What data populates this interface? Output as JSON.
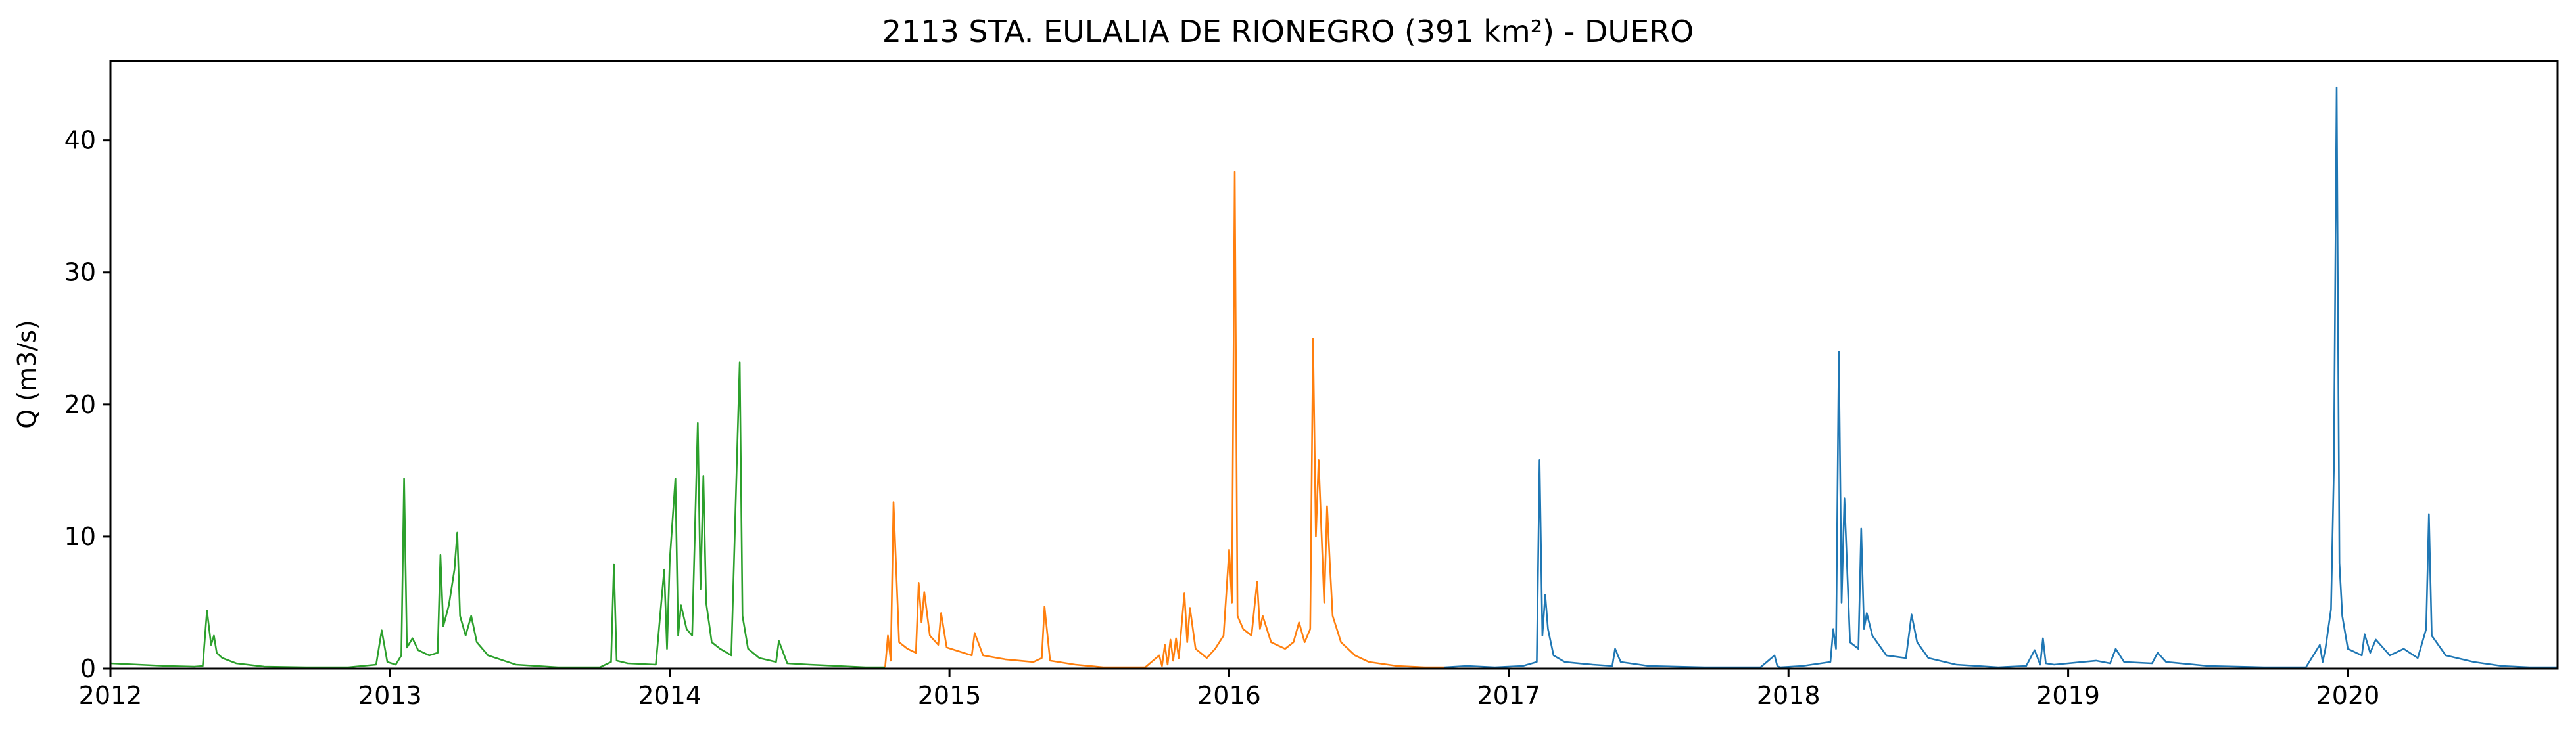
{
  "chart_data": {
    "type": "line",
    "title": "2113 STA. EULALIA DE RIONEGRO (391 km²) - DUERO",
    "xlabel": "",
    "ylabel": "Q (m3/s)",
    "xlim": [
      2012.0,
      2020.75
    ],
    "ylim": [
      0,
      46
    ],
    "x_ticks": [
      2012,
      2013,
      2014,
      2015,
      2016,
      2017,
      2018,
      2019,
      2020
    ],
    "y_ticks": [
      0,
      10,
      20,
      30,
      40
    ],
    "grid": false,
    "legend": "none",
    "series": [
      {
        "color": "#2ca02c",
        "x": [
          2012.0,
          2012.1,
          2012.2,
          2012.3,
          2012.33,
          2012.345,
          2012.36,
          2012.37,
          2012.38,
          2012.4,
          2012.45,
          2012.55,
          2012.7,
          2012.85,
          2012.95,
          2012.97,
          2012.99,
          2013.02,
          2013.04,
          2013.05,
          2013.06,
          2013.08,
          2013.1,
          2013.14,
          2013.17,
          2013.18,
          2013.19,
          2013.21,
          2013.23,
          2013.24,
          2013.25,
          2013.27,
          2013.29,
          2013.31,
          2013.35,
          2013.45,
          2013.6,
          2013.75,
          2013.79,
          2013.8,
          2013.81,
          2013.85,
          2013.95,
          2013.98,
          2013.99,
          2014.0,
          2014.02,
          2014.03,
          2014.04,
          2014.06,
          2014.08,
          2014.1,
          2014.11,
          2014.12,
          2014.13,
          2014.14,
          2014.15,
          2014.18,
          2014.22,
          2014.25,
          2014.26,
          2014.28,
          2014.32,
          2014.38,
          2014.39,
          2014.42,
          2014.5,
          2014.6,
          2014.7,
          2014.77
        ],
        "y": [
          0.4,
          0.3,
          0.2,
          0.15,
          0.2,
          4.4,
          1.8,
          2.5,
          1.2,
          0.8,
          0.4,
          0.15,
          0.1,
          0.1,
          0.3,
          2.9,
          0.5,
          0.3,
          1.0,
          14.4,
          1.6,
          2.3,
          1.4,
          1.0,
          1.2,
          8.6,
          3.2,
          4.8,
          7.5,
          10.3,
          4.0,
          2.5,
          4.0,
          2.0,
          1.0,
          0.3,
          0.1,
          0.1,
          0.5,
          7.9,
          0.6,
          0.4,
          0.3,
          7.5,
          1.5,
          8.2,
          14.4,
          2.5,
          4.8,
          3.0,
          2.5,
          18.6,
          6.0,
          14.6,
          5.0,
          3.5,
          2.0,
          1.5,
          1.0,
          23.2,
          4.0,
          1.5,
          0.8,
          0.5,
          2.1,
          0.4,
          0.3,
          0.2,
          0.1,
          0.1
        ]
      },
      {
        "color": "#ff7f0e",
        "x": [
          2014.77,
          2014.78,
          2014.79,
          2014.8,
          2014.82,
          2014.85,
          2014.88,
          2014.89,
          2014.9,
          2014.91,
          2014.93,
          2014.96,
          2014.97,
          2014.99,
          2015.05,
          2015.08,
          2015.09,
          2015.12,
          2015.2,
          2015.3,
          2015.33,
          2015.34,
          2015.36,
          2015.45,
          2015.55,
          2015.7,
          2015.75,
          2015.76,
          2015.77,
          2015.78,
          2015.79,
          2015.8,
          2015.81,
          2015.82,
          2015.84,
          2015.85,
          2015.86,
          2015.88,
          2015.92,
          2015.95,
          2015.98,
          2016.0,
          2016.01,
          2016.02,
          2016.03,
          2016.05,
          2016.08,
          2016.1,
          2016.11,
          2016.12,
          2016.15,
          2016.2,
          2016.23,
          2016.25,
          2016.27,
          2016.29,
          2016.3,
          2016.31,
          2016.32,
          2016.34,
          2016.35,
          2016.36,
          2016.37,
          2016.4,
          2016.45,
          2016.5,
          2016.6,
          2016.7,
          2016.77
        ],
        "y": [
          0.1,
          2.5,
          0.6,
          12.6,
          2.0,
          1.5,
          1.2,
          6.5,
          3.5,
          5.8,
          2.5,
          1.8,
          4.2,
          1.6,
          1.2,
          1.0,
          2.7,
          1.0,
          0.7,
          0.5,
          0.8,
          4.7,
          0.6,
          0.3,
          0.1,
          0.1,
          1.0,
          0.2,
          1.8,
          0.3,
          2.2,
          0.6,
          2.3,
          0.8,
          5.7,
          2.0,
          4.6,
          1.5,
          0.8,
          1.5,
          2.5,
          9.0,
          5.0,
          37.6,
          4.0,
          3.0,
          2.5,
          6.6,
          3.0,
          4.0,
          2.0,
          1.5,
          2.0,
          3.5,
          2.0,
          3.0,
          25.0,
          10.0,
          15.8,
          5.0,
          12.3,
          8.0,
          4.0,
          2.0,
          1.0,
          0.5,
          0.2,
          0.1,
          0.1
        ]
      },
      {
        "color": "#1f77b4",
        "x": [
          2016.77,
          2016.85,
          2016.95,
          2017.05,
          2017.1,
          2017.11,
          2017.12,
          2017.13,
          2017.14,
          2017.16,
          2017.2,
          2017.3,
          2017.37,
          2017.38,
          2017.4,
          2017.5,
          2017.7,
          2017.9,
          2017.95,
          2017.96,
          2017.97,
          2018.05,
          2018.15,
          2018.16,
          2018.17,
          2018.18,
          2018.19,
          2018.2,
          2018.22,
          2018.25,
          2018.26,
          2018.27,
          2018.28,
          2018.3,
          2018.35,
          2018.42,
          2018.44,
          2018.46,
          2018.5,
          2018.6,
          2018.75,
          2018.85,
          2018.88,
          2018.9,
          2018.91,
          2018.92,
          2018.95,
          2019.05,
          2019.1,
          2019.15,
          2019.17,
          2019.2,
          2019.3,
          2019.32,
          2019.35,
          2019.5,
          2019.7,
          2019.85,
          2019.9,
          2019.91,
          2019.92,
          2019.94,
          2019.95,
          2019.96,
          2019.97,
          2019.98,
          2020.0,
          2020.05,
          2020.06,
          2020.08,
          2020.1,
          2020.15,
          2020.2,
          2020.25,
          2020.28,
          2020.29,
          2020.3,
          2020.35,
          2020.45,
          2020.55,
          2020.65,
          2020.75
        ],
        "y": [
          0.1,
          0.2,
          0.1,
          0.2,
          0.5,
          15.8,
          2.5,
          5.6,
          3.0,
          1.0,
          0.5,
          0.3,
          0.2,
          1.5,
          0.5,
          0.2,
          0.1,
          0.1,
          1.0,
          0.2,
          0.1,
          0.2,
          0.5,
          3.0,
          1.5,
          24.0,
          5.0,
          12.9,
          2.0,
          1.5,
          10.6,
          3.0,
          4.2,
          2.5,
          1.0,
          0.8,
          4.1,
          2.0,
          0.8,
          0.3,
          0.1,
          0.2,
          1.4,
          0.3,
          2.3,
          0.4,
          0.3,
          0.5,
          0.6,
          0.4,
          1.5,
          0.5,
          0.4,
          1.2,
          0.5,
          0.2,
          0.1,
          0.1,
          1.8,
          0.5,
          1.5,
          4.5,
          15.0,
          44.0,
          8.0,
          4.0,
          1.5,
          1.0,
          2.6,
          1.2,
          2.2,
          1.0,
          1.5,
          0.8,
          3.0,
          11.7,
          2.5,
          1.0,
          0.5,
          0.2,
          0.1,
          0.1
        ]
      }
    ]
  }
}
